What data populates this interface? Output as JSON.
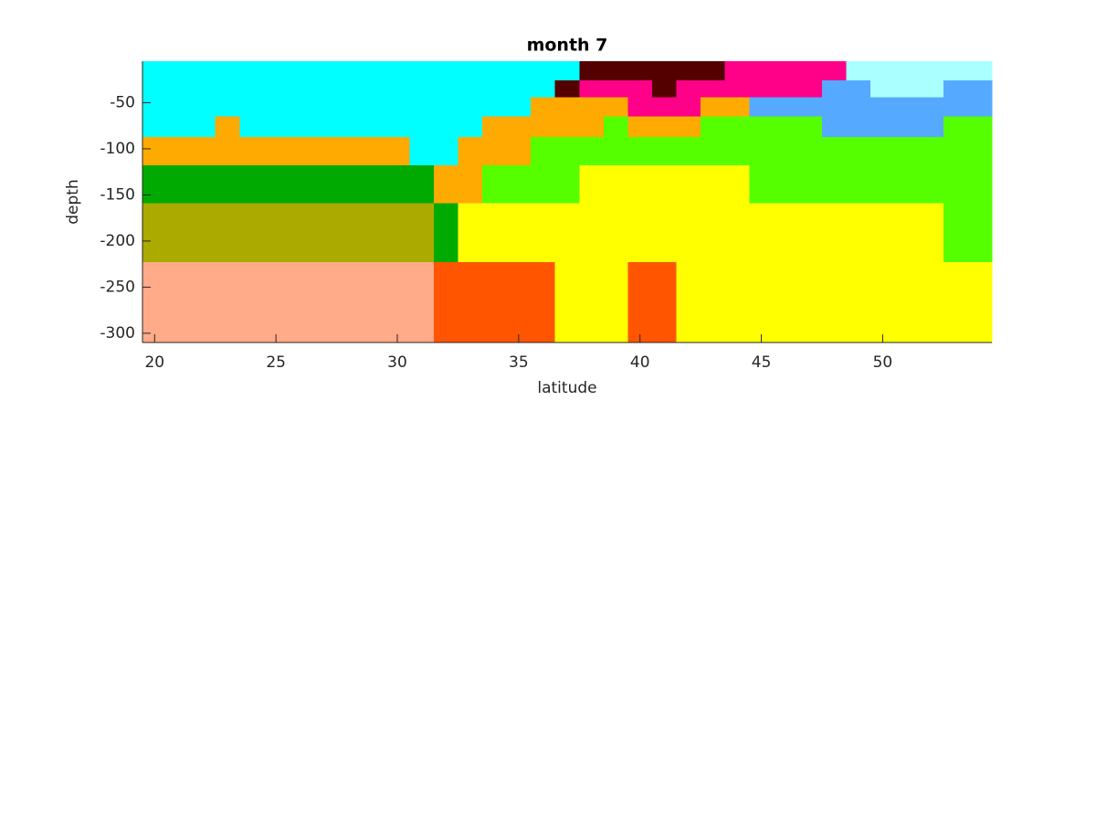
{
  "chart_data": {
    "type": "heatmap",
    "title": "month 7",
    "x_label": "latitude",
    "y_label": "depth",
    "x": [
      20,
      21,
      22,
      23,
      24,
      25,
      26,
      27,
      28,
      29,
      30,
      31,
      32,
      33,
      34,
      35,
      36,
      37,
      38,
      39,
      40,
      41,
      42,
      43,
      44,
      45,
      46,
      47,
      48,
      49,
      50,
      51,
      52,
      53,
      54
    ],
    "y_edges": [
      -5,
      -26,
      -44,
      -65,
      -87,
      -118,
      -159,
      -223,
      -310
    ],
    "xlim": [
      19.5,
      54.5
    ],
    "ylim": [
      -310,
      -5
    ],
    "xticks": [
      20,
      25,
      30,
      35,
      40,
      45,
      50
    ],
    "yticks": [
      -300,
      -250,
      -200,
      -150,
      -100,
      -50
    ],
    "colors": [
      "#00ffff",
      "#550000",
      "#ff0088",
      "#aaffff",
      "#ffaa00",
      "#55aaff",
      "#55ff00",
      "#00aa00",
      "#aaaa00",
      "#ffff00",
      "#ffaa88",
      "#ff5500"
    ],
    "values": [
      [
        0,
        0,
        0,
        0,
        0,
        0,
        0,
        0,
        0,
        0,
        0,
        0,
        0,
        0,
        0,
        0,
        0,
        0,
        1,
        1,
        1,
        1,
        1,
        1,
        2,
        2,
        2,
        2,
        2,
        3,
        3,
        3,
        3,
        3,
        3
      ],
      [
        0,
        0,
        0,
        0,
        0,
        0,
        0,
        0,
        0,
        0,
        0,
        0,
        0,
        0,
        0,
        0,
        0,
        1,
        2,
        2,
        2,
        1,
        2,
        2,
        2,
        2,
        2,
        2,
        5,
        5,
        3,
        3,
        3,
        5,
        5
      ],
      [
        0,
        0,
        0,
        0,
        0,
        0,
        0,
        0,
        0,
        0,
        0,
        0,
        0,
        0,
        0,
        0,
        4,
        4,
        4,
        4,
        2,
        2,
        2,
        4,
        4,
        5,
        5,
        5,
        5,
        5,
        5,
        5,
        5,
        5,
        5
      ],
      [
        0,
        0,
        0,
        4,
        0,
        0,
        0,
        0,
        0,
        0,
        0,
        0,
        0,
        0,
        4,
        4,
        4,
        4,
        4,
        6,
        4,
        4,
        4,
        6,
        6,
        6,
        6,
        6,
        5,
        5,
        5,
        5,
        5,
        6,
        6
      ],
      [
        4,
        4,
        4,
        4,
        4,
        4,
        4,
        4,
        4,
        4,
        4,
        0,
        0,
        4,
        4,
        4,
        6,
        6,
        6,
        6,
        6,
        6,
        6,
        6,
        6,
        6,
        6,
        6,
        6,
        6,
        6,
        6,
        6,
        6,
        6
      ],
      [
        7,
        7,
        7,
        7,
        7,
        7,
        7,
        7,
        7,
        7,
        7,
        7,
        4,
        4,
        6,
        6,
        6,
        6,
        9,
        9,
        9,
        9,
        9,
        9,
        9,
        6,
        6,
        6,
        6,
        6,
        6,
        6,
        6,
        6,
        6
      ],
      [
        8,
        8,
        8,
        8,
        8,
        8,
        8,
        8,
        8,
        8,
        8,
        8,
        7,
        9,
        9,
        9,
        9,
        9,
        9,
        9,
        9,
        9,
        9,
        9,
        9,
        9,
        9,
        9,
        9,
        9,
        9,
        9,
        9,
        6,
        6
      ],
      [
        10,
        10,
        10,
        10,
        10,
        10,
        10,
        10,
        10,
        10,
        10,
        10,
        11,
        11,
        11,
        11,
        11,
        9,
        9,
        9,
        11,
        11,
        9,
        9,
        9,
        9,
        9,
        9,
        9,
        9,
        9,
        9,
        9,
        9,
        9
      ]
    ]
  }
}
